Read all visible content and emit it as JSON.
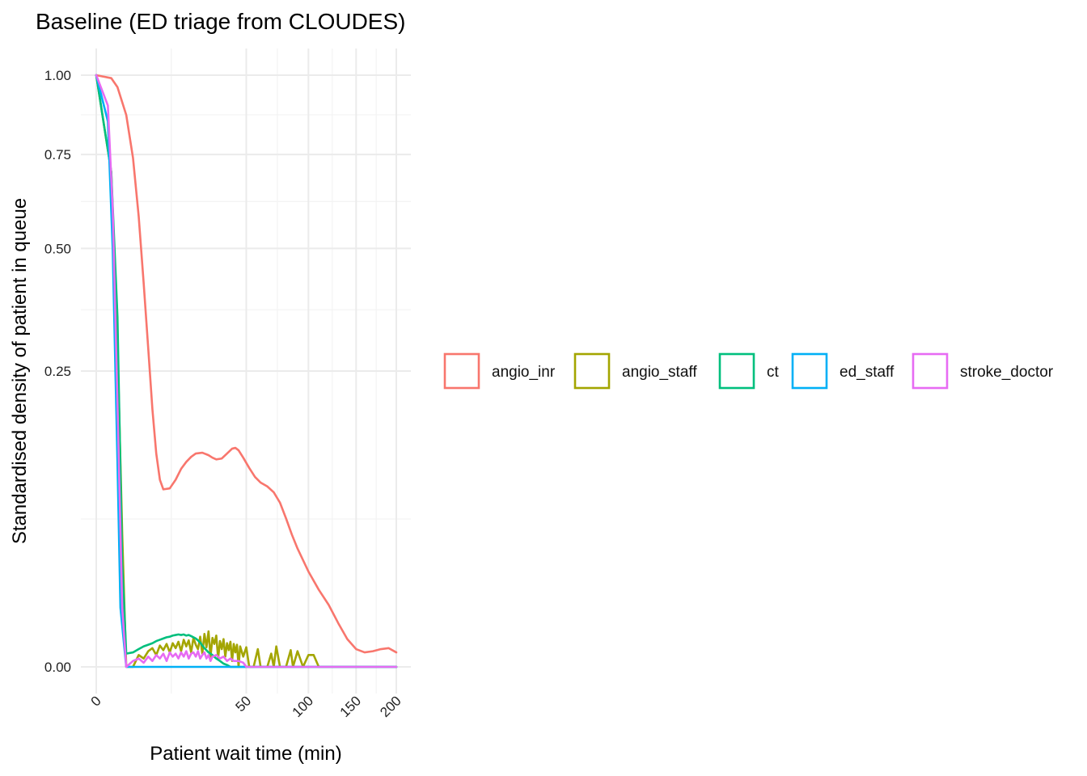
{
  "chart_data": {
    "type": "line",
    "title": "Baseline (ED triage from CLOUDES)",
    "xlabel": "Patient wait time (min)",
    "ylabel": "Standardised density of patient in queue",
    "x_scale": "sqrt",
    "y_scale": "sqrt",
    "xlim": [
      0,
      200
    ],
    "ylim": [
      0,
      1
    ],
    "x_ticks": [
      0,
      50,
      100,
      150,
      200
    ],
    "x_tick_labels": [
      "0",
      "50",
      "100",
      "150",
      "200"
    ],
    "y_ticks": [
      0,
      0.25,
      0.5,
      0.75,
      1
    ],
    "y_tick_labels": [
      "0.00",
      "0.25",
      "0.50",
      "0.75",
      "1.00"
    ],
    "grid": true,
    "legend_position": "right",
    "series": [
      {
        "name": "angio_inr",
        "color": "#F8766D",
        "x": [
          0,
          0.5,
          1,
          2,
          3,
          4,
          5,
          6,
          7,
          8,
          9,
          10,
          12,
          14,
          16,
          18,
          20,
          22,
          25,
          28,
          30,
          32,
          35,
          38,
          41,
          43,
          45,
          48,
          52,
          56,
          60,
          65,
          70,
          75,
          80,
          85,
          90,
          100,
          110,
          120,
          130,
          140,
          150,
          160,
          170,
          180,
          190,
          200
        ],
        "y": [
          1.0,
          0.99,
          0.96,
          0.87,
          0.74,
          0.58,
          0.42,
          0.29,
          0.19,
          0.13,
          0.1,
          0.09,
          0.091,
          0.1,
          0.112,
          0.12,
          0.126,
          0.13,
          0.131,
          0.128,
          0.125,
          0.123,
          0.124,
          0.13,
          0.136,
          0.137,
          0.134,
          0.125,
          0.113,
          0.103,
          0.097,
          0.093,
          0.087,
          0.077,
          0.063,
          0.05,
          0.04,
          0.026,
          0.017,
          0.011,
          0.0055,
          0.0022,
          0.0009,
          0.0006,
          0.0007,
          0.0009,
          0.001,
          0.0006
        ]
      },
      {
        "name": "angio_staff",
        "color": "#A3A500",
        "x": [
          0,
          0.5,
          1,
          1.5,
          2,
          3,
          4,
          5,
          6,
          7,
          8,
          9,
          10,
          11,
          12,
          13,
          14,
          15,
          16,
          17,
          18,
          19,
          20,
          21,
          22,
          23,
          24,
          25,
          26,
          27,
          28,
          29,
          30,
          31,
          32,
          33,
          34,
          35,
          36,
          37,
          38,
          39,
          40,
          41,
          42,
          43,
          44,
          45,
          46,
          48,
          50,
          52,
          55,
          58,
          60,
          62,
          65,
          68,
          70,
          72,
          75,
          78,
          80,
          84,
          86,
          90,
          95,
          100,
          105,
          110,
          150,
          200
        ],
        "y": [
          1.0,
          0.7,
          0.3,
          0.05,
          0.0,
          0.0,
          0.0004,
          0.0002,
          0.0007,
          0.001,
          0.0004,
          0.0013,
          0.0008,
          0.0015,
          0.0006,
          0.0016,
          0.001,
          0.0018,
          0.0007,
          0.0021,
          0.0012,
          0.002,
          0.0006,
          0.0024,
          0.0014,
          0.0009,
          0.0026,
          0.0005,
          0.0031,
          0.0011,
          0.0036,
          0.0003,
          0.0024,
          0.0015,
          0.0028,
          0.0002,
          0.0019,
          0.0009,
          0.0022,
          0.0003,
          0.0016,
          0.0008,
          0.0018,
          0.0001,
          0.0015,
          0.0006,
          0.0014,
          0.0,
          0.0012,
          0.0003,
          0.0011,
          0.0,
          0.0,
          0.0009,
          0.0,
          0.0,
          0.0,
          0.0005,
          0.0,
          0.0012,
          0.0,
          0.0,
          0.0,
          0.0008,
          0.0,
          0.0007,
          0.0,
          0.0004,
          0.0004,
          0.0,
          0.0,
          0.0
        ]
      },
      {
        "name": "ct",
        "color": "#00BF7D",
        "x": [
          0,
          0.5,
          1,
          1.5,
          2,
          3,
          4,
          5,
          6,
          7,
          8,
          9,
          10,
          11,
          12,
          13,
          14,
          15,
          16,
          17,
          18,
          19,
          20,
          21,
          22,
          23,
          24,
          25,
          26,
          28,
          30,
          32,
          34,
          36,
          38,
          40,
          200
        ],
        "y": [
          1.0,
          0.7,
          0.35,
          0.03,
          0.0005,
          0.0006,
          0.0009,
          0.0012,
          0.0014,
          0.0016,
          0.0019,
          0.0021,
          0.0023,
          0.0025,
          0.0026,
          0.0028,
          0.0029,
          0.003,
          0.0029,
          0.003,
          0.0028,
          0.0029,
          0.0027,
          0.0025,
          0.0023,
          0.002,
          0.0017,
          0.0013,
          0.001,
          0.0006,
          0.0004,
          0.0002,
          0.0001,
          3e-05,
          1e-05,
          0.0,
          0.0
        ]
      },
      {
        "name": "ed_staff",
        "color": "#00B0F6",
        "x": [
          0,
          0.3,
          0.6,
          1,
          1.3,
          2,
          200
        ],
        "y": [
          1.0,
          0.85,
          0.5,
          0.12,
          0.01,
          0.0,
          0.0
        ]
      },
      {
        "name": "stroke_doctor",
        "color": "#E76BF3",
        "x": [
          0,
          0.3,
          0.6,
          1,
          1.5,
          2,
          3,
          4,
          5,
          6,
          7,
          8,
          9,
          10,
          11,
          12,
          13,
          14,
          15,
          16,
          17,
          18,
          19,
          20,
          21,
          22,
          23,
          24,
          25,
          26,
          27,
          28,
          29,
          30,
          32,
          34,
          36,
          38,
          40,
          42,
          45,
          48,
          50,
          55,
          200
        ],
        "y": [
          1.0,
          0.9,
          0.6,
          0.2,
          0.01,
          0.0,
          0.0001,
          0.0002,
          5e-05,
          0.0003,
          0.0001,
          0.0004,
          0.0002,
          0.0005,
          0.0001,
          0.0006,
          0.0003,
          0.0005,
          0.0002,
          0.0006,
          0.0003,
          0.0007,
          0.0002,
          0.0005,
          0.0006,
          0.0003,
          0.0007,
          0.0002,
          0.0004,
          0.0006,
          0.0002,
          0.0004,
          0.0001,
          0.0003,
          0.0004,
          0.0002,
          0.0003,
          0.0001,
          0.0002,
          0.0001,
          0.0001,
          5e-05,
          0.0,
          0.0,
          0.0
        ]
      }
    ]
  }
}
